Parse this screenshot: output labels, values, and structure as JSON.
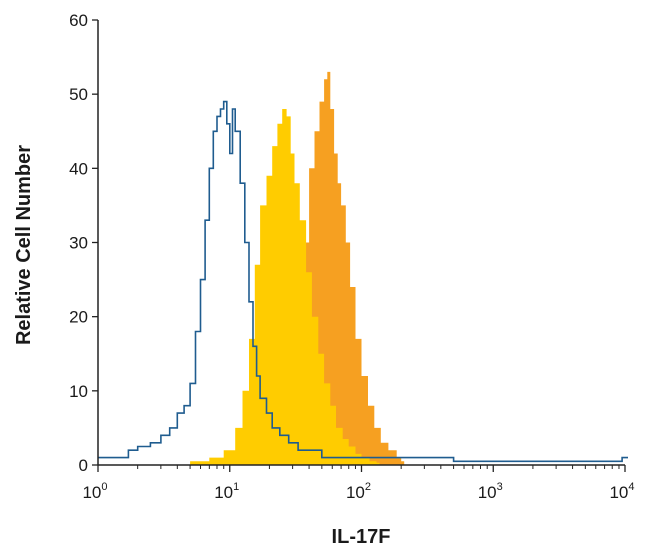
{
  "chart_data": {
    "type": "area",
    "xlabel": "IL-17F",
    "ylabel": "Relative Cell Number",
    "xscale": "log",
    "xlim": [
      1,
      10000
    ],
    "ylim": [
      0,
      60
    ],
    "x_ticks": [
      {
        "base": "10",
        "exp": "0",
        "value": 1
      },
      {
        "base": "10",
        "exp": "1",
        "value": 10
      },
      {
        "base": "10",
        "exp": "2",
        "value": 100
      },
      {
        "base": "10",
        "exp": "3",
        "value": 1000
      },
      {
        "base": "10",
        "exp": "4",
        "value": 10000
      }
    ],
    "y_ticks": [
      "0",
      "10",
      "20",
      "30",
      "40",
      "50",
      "60"
    ],
    "grid": false,
    "legend": "none",
    "series": [
      {
        "style": "filled",
        "color": "#F6A021",
        "x": [
          20,
          25,
          30,
          33,
          36,
          40,
          44,
          48,
          52,
          55,
          58,
          62,
          66,
          70,
          76,
          82,
          90,
          100,
          112,
          125,
          140,
          160,
          185,
          200
        ],
        "y": [
          0.5,
          2,
          6,
          15,
          30,
          40,
          45,
          49,
          52,
          53,
          48,
          42,
          38,
          35,
          30,
          24,
          17,
          12,
          8,
          5,
          3,
          2,
          1,
          0.5
        ]
      },
      {
        "style": "filled",
        "color": "#FFCC00",
        "x": [
          5,
          7,
          9,
          11,
          12.5,
          14,
          15.5,
          17,
          19,
          21,
          23,
          25,
          27,
          29,
          31,
          34,
          38,
          42,
          47,
          52,
          58,
          64,
          72,
          80,
          90,
          100,
          115,
          130
        ],
        "y": [
          0.5,
          1,
          2,
          5,
          10,
          17,
          27,
          35,
          39,
          43,
          46,
          48,
          47,
          42,
          38,
          33,
          26,
          20,
          15,
          11,
          8,
          5,
          3.5,
          2.5,
          1.5,
          1,
          0.5,
          0.3
        ]
      },
      {
        "style": "outline",
        "color": "#1F5C8F",
        "x": [
          1,
          1.3,
          1.7,
          2,
          2.5,
          3,
          3.5,
          4,
          4.5,
          5,
          5.5,
          6,
          6.5,
          7,
          7.5,
          8,
          8.5,
          9,
          9.5,
          10,
          10.5,
          11,
          12,
          13,
          14,
          15,
          16,
          17,
          19,
          21,
          24,
          28,
          33,
          40,
          50,
          70,
          100,
          150,
          200,
          300,
          400,
          500,
          700,
          1000,
          1500,
          2000,
          3000,
          4000,
          5000,
          7000,
          9000,
          9500,
          10000
        ],
        "y": [
          1,
          1,
          2,
          2.5,
          3,
          4,
          5,
          7,
          8,
          11,
          18,
          25,
          33,
          40,
          45,
          47,
          48,
          49,
          46,
          42,
          48,
          45,
          38,
          30,
          22,
          16,
          12,
          9,
          7,
          5,
          4,
          3,
          2,
          2,
          1,
          1,
          1,
          1,
          1,
          1,
          1,
          0.5,
          0.5,
          0.5,
          0.5,
          0.5,
          0.5,
          0.5,
          0.5,
          0.5,
          0.5,
          1,
          1
        ]
      }
    ]
  }
}
